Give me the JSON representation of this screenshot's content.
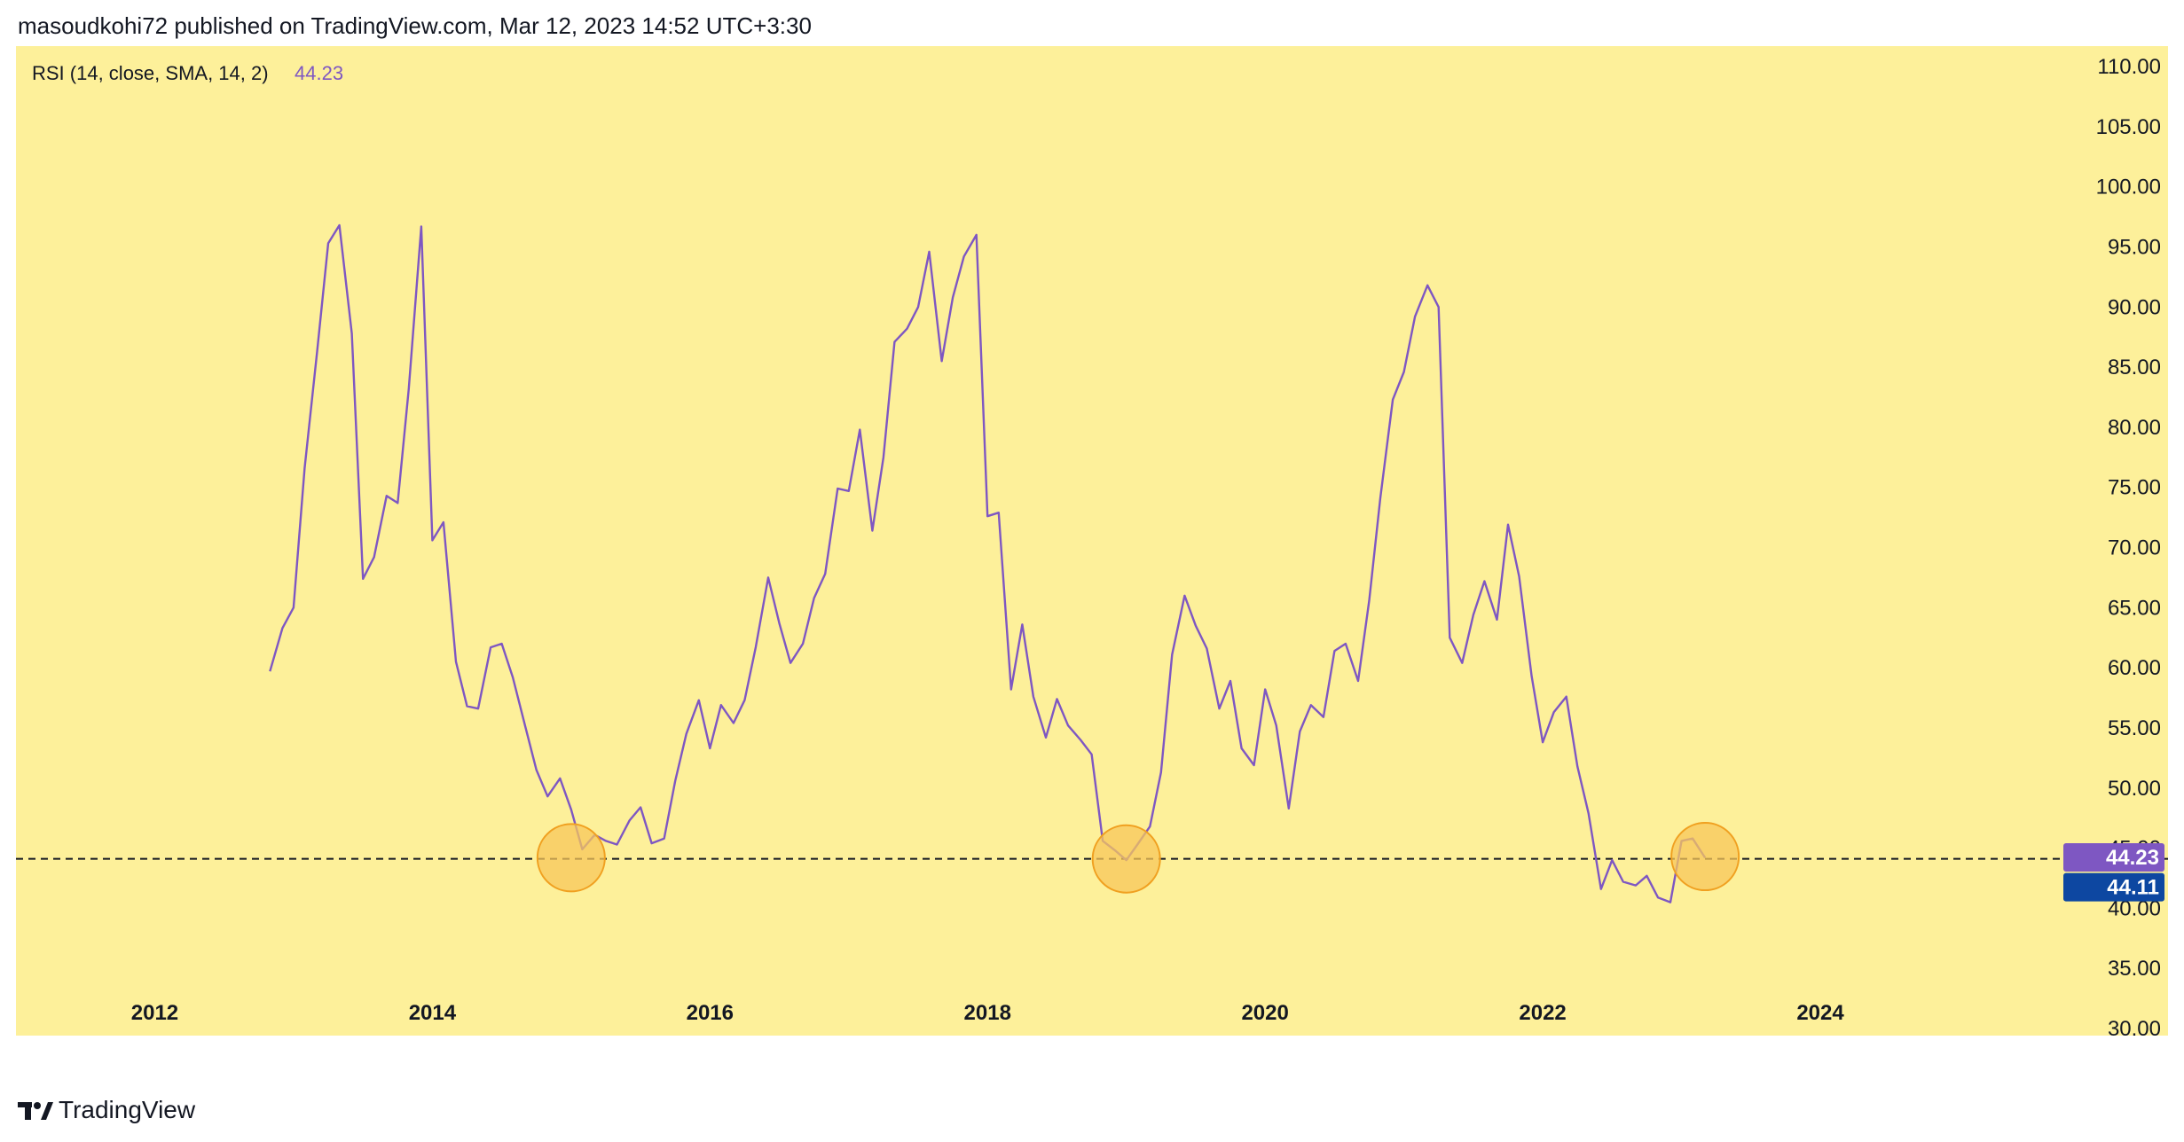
{
  "header": {
    "text": "masoudkohi72 published on TradingView.com, Mar 12, 2023 14:52 UTC+3:30"
  },
  "footer": {
    "brand": "TradingView",
    "logo_icon": "tradingview-logo-icon"
  },
  "colors": {
    "background": "#fdf09a",
    "line": "#7e57c2",
    "badge_primary": "#7e57c2",
    "badge_secondary": "#0d47a1",
    "highlight_fill": "#f7c75a",
    "highlight_stroke": "#f0a020"
  },
  "chart_data": {
    "type": "line",
    "title": "RSI (14, close, SMA, 14, 2)",
    "last_value_label": "44.23",
    "series": [
      {
        "name": "RSI",
        "x": [
          2012.83,
          2012.92,
          2013.0,
          2013.08,
          2013.17,
          2013.25,
          2013.33,
          2013.42,
          2013.5,
          2013.58,
          2013.67,
          2013.75,
          2013.83,
          2013.92,
          2014.0,
          2014.08,
          2014.17,
          2014.25,
          2014.33,
          2014.42,
          2014.5,
          2014.58,
          2014.67,
          2014.75,
          2014.83,
          2014.92,
          2015.0,
          2015.08,
          2015.17,
          2015.25,
          2015.33,
          2015.42,
          2015.5,
          2015.58,
          2015.67,
          2015.75,
          2015.83,
          2015.92,
          2016.0,
          2016.08,
          2016.17,
          2016.25,
          2016.33,
          2016.42,
          2016.5,
          2016.58,
          2016.67,
          2016.75,
          2016.83,
          2016.92,
          2017.0,
          2017.08,
          2017.17,
          2017.25,
          2017.33,
          2017.42,
          2017.5,
          2017.58,
          2017.67,
          2017.75,
          2017.83,
          2017.92,
          2018.0,
          2018.08,
          2018.17,
          2018.25,
          2018.33,
          2018.42,
          2018.5,
          2018.58,
          2018.67,
          2018.75,
          2018.83,
          2018.92,
          2019.0,
          2019.08,
          2019.17,
          2019.25,
          2019.33,
          2019.42,
          2019.5,
          2019.58,
          2019.67,
          2019.75,
          2019.83,
          2019.92,
          2020.0,
          2020.08,
          2020.17,
          2020.25,
          2020.33,
          2020.42,
          2020.5,
          2020.58,
          2020.67,
          2020.75,
          2020.83,
          2020.92,
          2021.0,
          2021.08,
          2021.17,
          2021.25,
          2021.33,
          2021.42,
          2021.5,
          2021.58,
          2021.67,
          2021.75,
          2021.83,
          2021.92,
          2022.0,
          2022.08,
          2022.17,
          2022.25,
          2022.33,
          2022.42,
          2022.5,
          2022.58,
          2022.67,
          2022.75,
          2022.83,
          2022.92,
          2023.0,
          2023.08,
          2023.17
        ],
        "y": [
          59.7,
          63.3,
          65.0,
          76.6,
          86.3,
          95.3,
          96.8,
          87.8,
          67.4,
          69.2,
          74.3,
          73.7,
          83.2,
          96.7,
          70.6,
          72.1,
          60.5,
          56.8,
          56.6,
          61.7,
          62.0,
          59.2,
          55.1,
          51.5,
          49.3,
          50.8,
          48.2,
          44.9,
          46.1,
          45.6,
          45.3,
          47.3,
          48.4,
          45.4,
          45.8,
          50.6,
          54.5,
          57.3,
          53.3,
          56.9,
          55.4,
          57.3,
          61.7,
          67.5,
          63.7,
          60.4,
          62.0,
          65.8,
          67.8,
          74.9,
          74.7,
          79.8,
          71.4,
          77.5,
          87.1,
          88.2,
          90.0,
          94.6,
          85.5,
          90.8,
          94.2,
          96.0,
          72.6,
          72.9,
          58.2,
          63.6,
          57.6,
          54.2,
          57.4,
          55.2,
          54.0,
          52.8,
          45.6,
          44.8,
          44.0,
          45.3,
          46.8,
          51.3,
          61.1,
          66.0,
          63.5,
          61.6,
          56.6,
          58.9,
          53.3,
          51.9,
          58.2,
          55.2,
          48.3,
          54.7,
          56.9,
          55.9,
          61.4,
          62.0,
          58.9,
          65.6,
          74.1,
          82.3,
          84.6,
          89.2,
          91.8,
          90.0,
          62.5,
          60.4,
          64.4,
          67.2,
          64.0,
          71.9,
          67.6,
          59.3,
          53.8,
          56.3,
          57.6,
          51.8,
          47.9,
          41.6,
          44.0,
          42.2,
          41.9,
          42.7,
          40.9,
          40.5,
          45.6,
          45.8,
          44.2
        ]
      }
    ],
    "xlim": [
      2011.0,
      2025.7
    ],
    "ylim": [
      30.0,
      110.0
    ],
    "x_ticks": [
      {
        "v": 2012,
        "label": "2012"
      },
      {
        "v": 2014,
        "label": "2014"
      },
      {
        "v": 2016,
        "label": "2016"
      },
      {
        "v": 2018,
        "label": "2018"
      },
      {
        "v": 2020,
        "label": "2020"
      },
      {
        "v": 2022,
        "label": "2022"
      },
      {
        "v": 2024,
        "label": "2024"
      }
    ],
    "y_ticks": [
      {
        "v": 110,
        "label": "110.00"
      },
      {
        "v": 105,
        "label": "105.00"
      },
      {
        "v": 100,
        "label": "100.00"
      },
      {
        "v": 95,
        "label": "95.00"
      },
      {
        "v": 90,
        "label": "90.00"
      },
      {
        "v": 85,
        "label": "85.00"
      },
      {
        "v": 80,
        "label": "80.00"
      },
      {
        "v": 75,
        "label": "75.00"
      },
      {
        "v": 70,
        "label": "70.00"
      },
      {
        "v": 65,
        "label": "65.00"
      },
      {
        "v": 60,
        "label": "60.00"
      },
      {
        "v": 55,
        "label": "55.00"
      },
      {
        "v": 50,
        "label": "50.00"
      },
      {
        "v": 45,
        "label": "45.00"
      },
      {
        "v": 40,
        "label": "40.00"
      },
      {
        "v": 35,
        "label": "35.00"
      },
      {
        "v": 30,
        "label": "30.00"
      }
    ],
    "horizontal_line": {
      "y": 44.11,
      "style": "dashed"
    },
    "price_badges": [
      {
        "value": 44.23,
        "label": "44.23",
        "color": "#7e57c2"
      },
      {
        "value": 44.11,
        "label": "44.11",
        "color": "#0d47a1"
      }
    ],
    "highlights": [
      {
        "x": 2015.0,
        "y": 44.2
      },
      {
        "x": 2019.0,
        "y": 44.1
      },
      {
        "x": 2023.17,
        "y": 44.3
      }
    ],
    "grid": false,
    "legend": "top-left"
  }
}
